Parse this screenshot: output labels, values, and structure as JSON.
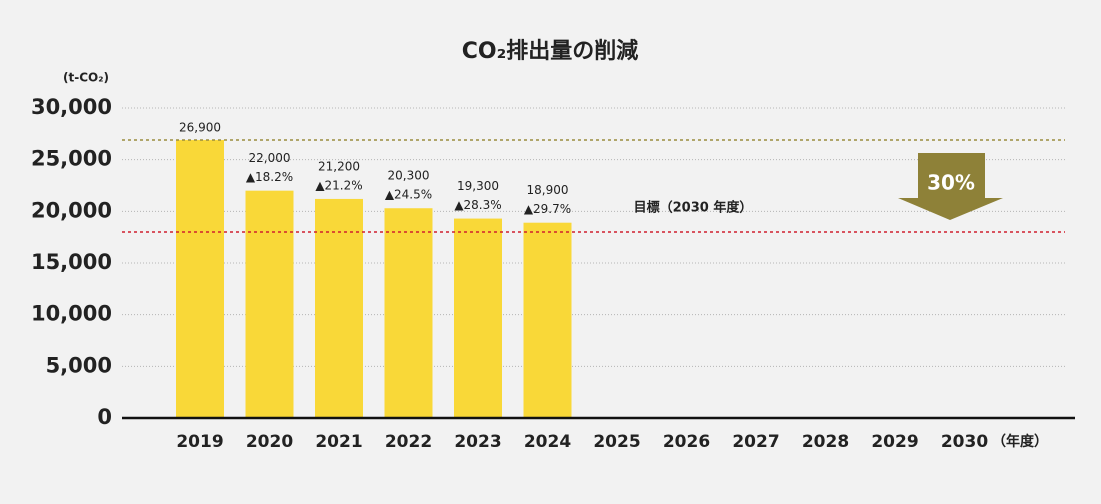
{
  "chart_data": {
    "type": "bar",
    "title": "CO₂排出量の削減",
    "y_unit": "(t-CO₂)",
    "x_unit": "（年度）",
    "categories": [
      "2019",
      "2020",
      "2021",
      "2022",
      "2023",
      "2024",
      "2025",
      "2026",
      "2027",
      "2028",
      "2029",
      "2030"
    ],
    "values": [
      26900,
      22000,
      21200,
      20300,
      19300,
      18900,
      null,
      null,
      null,
      null,
      null,
      null
    ],
    "value_labels": [
      "26,900",
      "22,000",
      "21,200",
      "20,300",
      "19,300",
      "18,900",
      null,
      null,
      null,
      null,
      null,
      null
    ],
    "reductions": [
      null,
      "▲18.2%",
      "▲21.2%",
      "▲24.5%",
      "▲28.3%",
      "▲29.7%",
      null,
      null,
      null,
      null,
      null,
      null
    ],
    "color": "#f9d838",
    "ylim": [
      0,
      30000
    ],
    "yticks": [
      0,
      {
        "value": 5000,
        "label": "5,000"
      },
      {
        "value": 10000,
        "label": "10,000"
      },
      {
        "value": 15000,
        "label": "15,000"
      },
      {
        "value": 20000,
        "label": "20,000"
      },
      {
        "value": 25000,
        "label": "25,000"
      },
      {
        "value": 30000,
        "label": "30,000"
      }
    ],
    "grid": true,
    "reference_lines": [
      {
        "value": 26900,
        "color": "#9a8c3e"
      },
      {
        "value": 18000,
        "label": "目標（2030 年度）",
        "color": "#d0202e"
      }
    ],
    "arrow_label": "30%",
    "arrow_color": "#8e8138"
  }
}
